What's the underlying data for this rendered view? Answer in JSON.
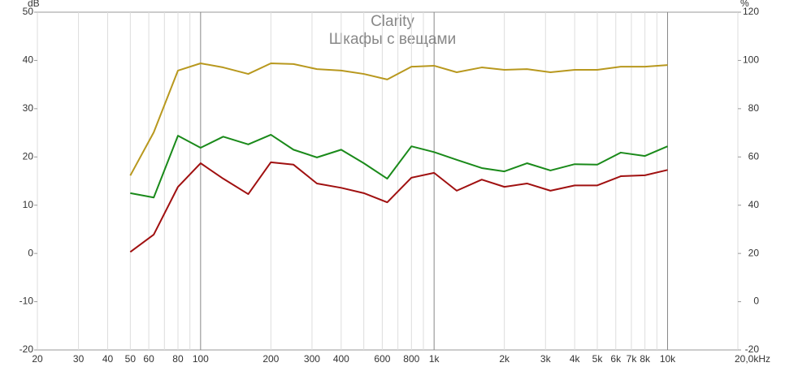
{
  "chart_data": {
    "type": "line",
    "title": "Clarity",
    "subtitle": "Шкафы с вещами",
    "y_label": "dB",
    "y2_label": "%",
    "x_scale": "log",
    "xlim": [
      20,
      20000
    ],
    "xticks": [
      20,
      30,
      40,
      50,
      60,
      80,
      100,
      200,
      300,
      400,
      600,
      800,
      {
        "value": 1000,
        "label": "1k"
      },
      {
        "value": 2000,
        "label": "2k"
      },
      {
        "value": 3000,
        "label": "3k"
      },
      {
        "value": 4000,
        "label": "4k"
      },
      {
        "value": 5000,
        "label": "5k"
      },
      {
        "value": 6000,
        "label": "6k"
      },
      {
        "value": 7000,
        "label": "7k"
      },
      {
        "value": 8000,
        "label": "8k"
      },
      {
        "value": 10000,
        "label": "10k"
      },
      {
        "value": 20000,
        "label": "20,0kHz"
      }
    ],
    "x_minor_grid": [
      70,
      90,
      500,
      700,
      900,
      9000
    ],
    "ylim": [
      -20,
      50
    ],
    "yticks": [
      -20,
      -10,
      0,
      10,
      20,
      30,
      40,
      50
    ],
    "y2lim": [
      -20,
      120
    ],
    "y2ticks": [
      -20,
      0,
      20,
      40,
      60,
      80,
      100,
      120
    ],
    "x": [
      50,
      63,
      80,
      100,
      125,
      160,
      200,
      250,
      315,
      400,
      500,
      630,
      800,
      1000,
      1250,
      1600,
      2000,
      2500,
      3150,
      4000,
      5000,
      6300,
      8000,
      10000
    ],
    "series": [
      {
        "color": "#b8981e",
        "axis": "y2",
        "values": [
          52.3,
          70.2,
          95.8,
          98.8,
          97.1,
          94.4,
          98.8,
          98.5,
          96.4,
          95.8,
          94.4,
          92.1,
          97.4,
          97.8,
          95.1,
          97.1,
          96.1,
          96.4,
          95.1,
          96.1,
          96.1,
          97.4,
          97.4,
          98.1
        ]
      },
      {
        "color": "#1a8a1a",
        "values": [
          12.5,
          11.6,
          24.4,
          21.9,
          24.2,
          22.6,
          24.6,
          21.5,
          19.9,
          21.5,
          18.7,
          15.5,
          22.2,
          21.0,
          19.4,
          17.7,
          17.0,
          18.7,
          17.2,
          18.5,
          18.4,
          20.9,
          20.2,
          22.2
        ]
      },
      {
        "color": "#a01010",
        "values": [
          0.3,
          3.9,
          13.8,
          18.7,
          15.5,
          12.3,
          18.9,
          18.4,
          14.5,
          13.6,
          12.5,
          10.6,
          15.7,
          16.7,
          13.0,
          15.3,
          13.8,
          14.5,
          13.0,
          14.1,
          14.1,
          16.0,
          16.2,
          17.3
        ]
      }
    ]
  }
}
